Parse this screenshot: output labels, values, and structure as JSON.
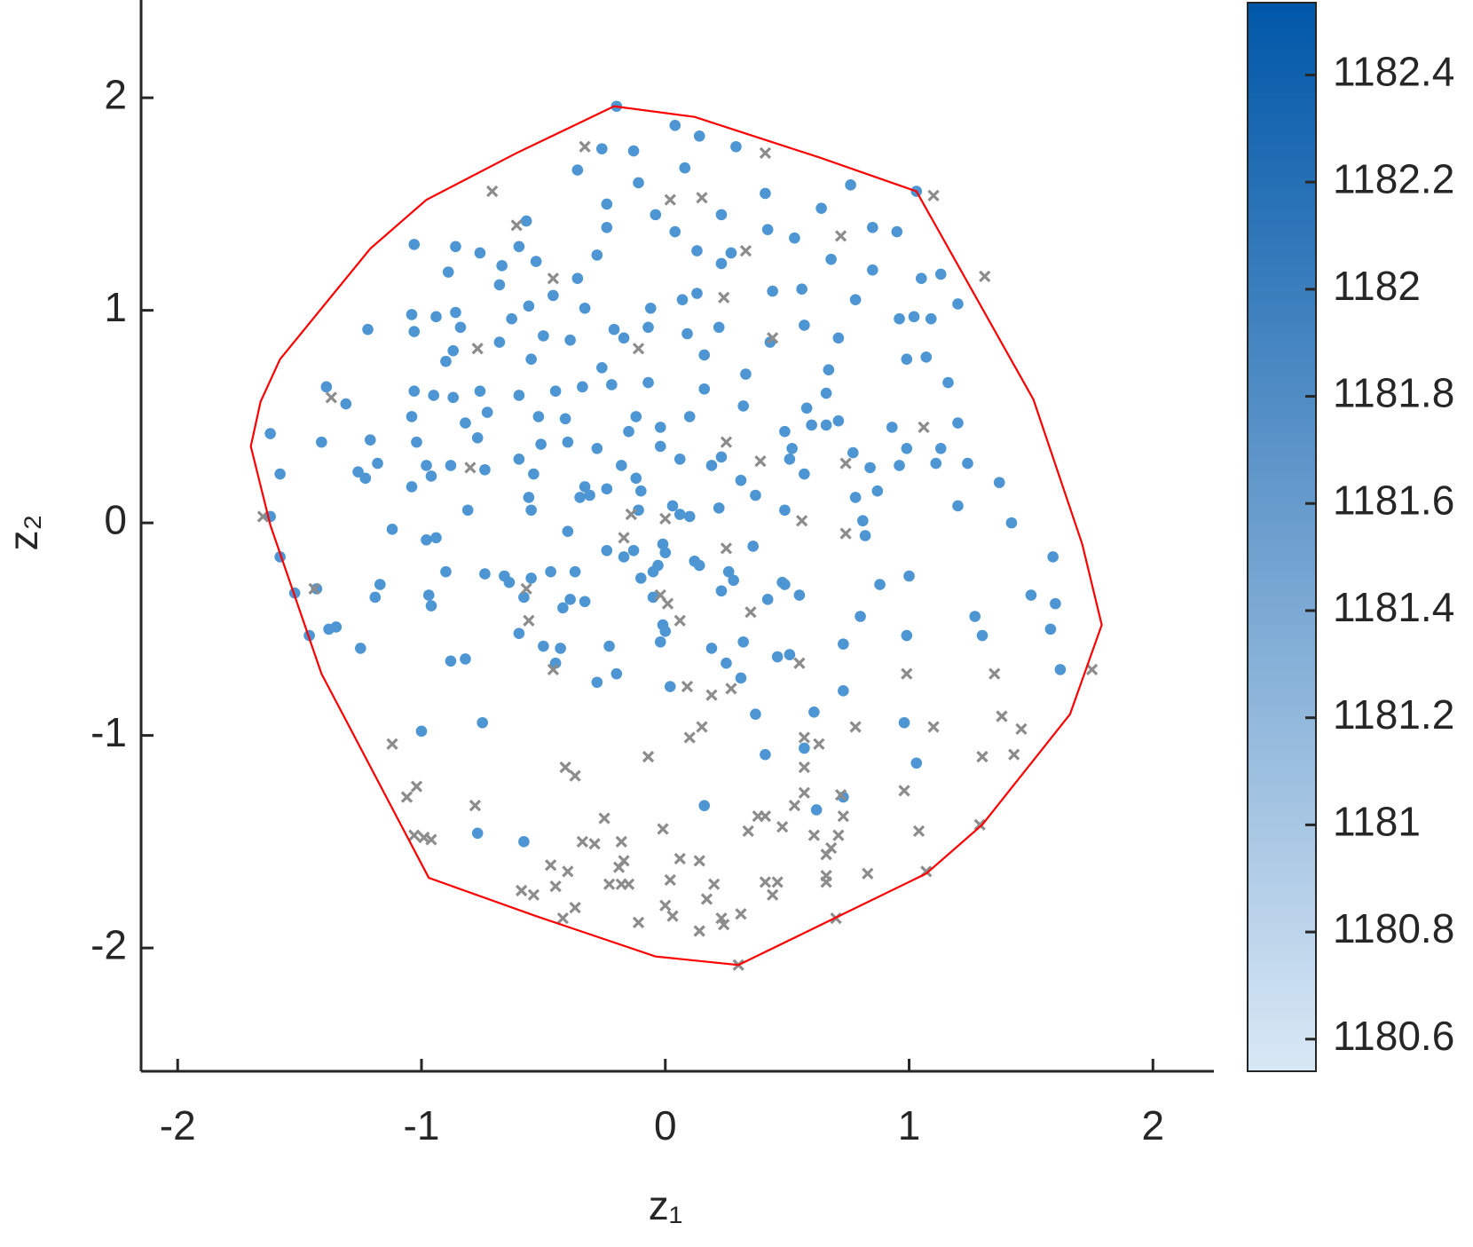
{
  "chart_data": {
    "type": "scatter",
    "xlabel": "z₁",
    "ylabel": "z₂",
    "xlim": [
      -2.15,
      2.25
    ],
    "ylim": [
      -2.58,
      2.46
    ],
    "xticks": [
      -2,
      -1,
      0,
      1,
      2
    ],
    "yticks": [
      -2,
      -1,
      0,
      1,
      2
    ],
    "grid": false,
    "series": [
      {
        "color": "#4d96d3",
        "marker": "o",
        "x": [
          -0.2,
          0.04,
          0.14,
          0.29,
          -0.36,
          -0.26,
          -0.13,
          -0.11,
          0.08,
          0.76,
          1.03,
          0.41,
          -0.24,
          -0.04,
          0.23,
          0.64,
          -0.57,
          -0.24,
          0.04,
          0.42,
          0.85,
          0.95,
          -1.03,
          -0.86,
          -0.76,
          -0.6,
          -0.28,
          0.13,
          0.27,
          0.53,
          0.68,
          -0.89,
          -0.67,
          -0.53,
          -0.36,
          0.23,
          0.85,
          1.05,
          1.13,
          -0.68,
          -0.46,
          0.13,
          0.44,
          0.56,
          -1.04,
          -0.86,
          -0.56,
          -0.33,
          -0.06,
          0.07,
          0.78,
          1.2,
          -1.22,
          -0.94,
          -0.84,
          -0.63,
          -0.5,
          -0.21,
          -0.07,
          0.09,
          0.22,
          0.57,
          0.96,
          1.02,
          1.09,
          -1.03,
          -0.87,
          -0.68,
          -0.39,
          -0.17,
          0.43,
          0.71,
          -0.9,
          -0.55,
          -0.26,
          0.99,
          1.07,
          0.16,
          0.67,
          -1.39,
          -1.03,
          -0.76,
          -0.45,
          -0.34,
          -0.22,
          -0.07,
          0.16,
          0.33,
          1.16,
          -0.95,
          -0.6,
          0.66,
          -1.31,
          -0.87,
          -1.04,
          -0.73,
          -0.52,
          -0.41,
          -0.12,
          0.1,
          0.32,
          0.58,
          1.2,
          -0.82,
          -0.51,
          -0.4,
          -0.28,
          -0.15,
          -0.02,
          0.49,
          0.6,
          0.66,
          0.71,
          0.93,
          -1.62,
          -1.21,
          -1.02,
          -0.77,
          -1.41,
          -0.02,
          0.52,
          0.99,
          1.13,
          -1.18,
          -0.98,
          -0.88,
          -0.74,
          -0.6,
          -0.18,
          0.06,
          0.23,
          0.51,
          0.77,
          1.11,
          1.24,
          -1.58,
          -1.26,
          -1.23,
          -0.96,
          -0.54,
          -0.12,
          0.19,
          0.31,
          0.57,
          0.84,
          0.96,
          1.37,
          -1.04,
          -0.33,
          -0.24,
          -0.1,
          0.37,
          0.78,
          0.87,
          -0.56,
          -0.35,
          -0.31,
          -0.81,
          -0.55,
          -0.11,
          0.03,
          0.22,
          0.49,
          1.2,
          -1.62,
          0.06,
          0.1,
          1.42,
          0.81,
          -1.12,
          -0.4,
          -0.94,
          -0.98,
          -0.01,
          0.36,
          0,
          -0.13,
          0.82,
          -0.24,
          -1.58,
          -0.17,
          0.12,
          0.14,
          1.59,
          -0.03,
          -0.05,
          -0.9,
          -0.74,
          -0.47,
          -0.37,
          0.26,
          1.0,
          -1.17,
          -0.66,
          -0.64,
          -0.55,
          -0.1,
          0.48,
          0.49,
          0.88,
          0.28,
          -1.43,
          0.23,
          -1.52,
          -0.97,
          -1.19,
          0.55,
          1.5,
          -0.58,
          -0.05,
          -0.39,
          0.42,
          1.6,
          -0.33,
          -0.96,
          -0.42,
          1.27,
          0.8,
          -0.01,
          -1.35,
          -1.38,
          1.58,
          -0.6,
          0,
          -1.46,
          1.3,
          0.99,
          -0.02,
          0.32,
          0.73,
          -0.5,
          -0.23,
          -0.43,
          -1.25,
          0.19,
          0.51,
          0.46,
          -0.88,
          -0.82,
          -0.45,
          0.25,
          1.62,
          -0.2,
          -0.28,
          0.02,
          0.31,
          0.73,
          0.61,
          0.37,
          0.98,
          -0.75,
          -1.0,
          0.57,
          0.41,
          1.03,
          0.73,
          0.16,
          0.62,
          -0.77,
          -0.58
        ],
        "values": [
          1.96,
          1.87,
          1.82,
          1.77,
          1.66,
          1.76,
          1.75,
          1.6,
          1.67,
          1.59,
          1.56,
          1.55,
          1.5,
          1.45,
          1.45,
          1.48,
          1.42,
          1.39,
          1.37,
          1.38,
          1.39,
          1.37,
          1.31,
          1.3,
          1.27,
          1.3,
          1.26,
          1.28,
          1.27,
          1.34,
          1.24,
          1.18,
          1.21,
          1.23,
          1.15,
          1.22,
          1.19,
          1.15,
          1.17,
          1.12,
          1.07,
          1.08,
          1.09,
          1.1,
          0.98,
          0.99,
          1.02,
          1.01,
          1.01,
          1.05,
          1.05,
          1.03,
          0.91,
          0.97,
          0.92,
          0.96,
          0.88,
          0.91,
          0.92,
          0.89,
          0.92,
          0.93,
          0.96,
          0.97,
          0.96,
          0.9,
          0.81,
          0.85,
          0.86,
          0.87,
          0.85,
          0.87,
          0.76,
          0.77,
          0.73,
          0.77,
          0.78,
          0.79,
          0.72,
          0.64,
          0.62,
          0.62,
          0.62,
          0.64,
          0.65,
          0.66,
          0.63,
          0.7,
          0.66,
          0.6,
          0.6,
          0.61,
          0.56,
          0.59,
          0.5,
          0.52,
          0.5,
          0.49,
          0.5,
          0.5,
          0.55,
          0.54,
          0.47,
          0.47,
          0.37,
          0.38,
          0.35,
          0.43,
          0.45,
          0.43,
          0.46,
          0.46,
          0.48,
          0.45,
          0.42,
          0.39,
          0.38,
          0.4,
          0.38,
          0.36,
          0.35,
          0.35,
          0.35,
          0.28,
          0.27,
          0.27,
          0.25,
          0.3,
          0.27,
          0.3,
          0.31,
          0.3,
          0.33,
          0.28,
          0.28,
          0.23,
          0.24,
          0.21,
          0.22,
          0.23,
          0.21,
          0.27,
          0.2,
          0.23,
          0.26,
          0.27,
          0.19,
          0.17,
          0.17,
          0.16,
          0.15,
          0.13,
          0.12,
          0.15,
          0.12,
          0.12,
          0.13,
          0.06,
          0.06,
          0.06,
          0.08,
          0.07,
          0.06,
          0.08,
          0.03,
          0.04,
          0.03,
          0,
          0.01,
          -0.03,
          -0.04,
          -0.07,
          -0.08,
          -0.1,
          -0.11,
          -0.14,
          -0.13,
          -0.06,
          -0.13,
          -0.16,
          -0.16,
          -0.18,
          -0.2,
          -0.16,
          -0.2,
          -0.23,
          -0.23,
          -0.24,
          -0.23,
          -0.23,
          -0.23,
          -0.25,
          -0.29,
          -0.25,
          -0.28,
          -0.26,
          -0.26,
          -0.28,
          -0.29,
          -0.29,
          -0.27,
          -0.31,
          -0.32,
          -0.33,
          -0.34,
          -0.35,
          -0.34,
          -0.34,
          -0.35,
          -0.35,
          -0.36,
          -0.36,
          -0.38,
          -0.37,
          -0.39,
          -0.4,
          -0.44,
          -0.44,
          -0.48,
          -0.49,
          -0.5,
          -0.5,
          -0.52,
          -0.51,
          -0.53,
          -0.53,
          -0.53,
          -0.56,
          -0.56,
          -0.57,
          -0.58,
          -0.58,
          -0.59,
          -0.59,
          -0.59,
          -0.62,
          -0.63,
          -0.65,
          -0.64,
          -0.66,
          -0.66,
          -0.69,
          -0.71,
          -0.75,
          -0.77,
          -0.73,
          -0.79,
          -0.89,
          -0.9,
          -0.94,
          -0.94,
          -0.98,
          -1.06,
          -1.09,
          -1.13,
          -1.29,
          -1.33,
          -1.35,
          -1.46,
          -1.5
        ]
      },
      {
        "color": "#8c8c8c",
        "marker": "x",
        "x": [
          -0.33,
          0.41,
          -0.71,
          0.02,
          0.15,
          1.1,
          -0.61,
          0.72,
          0.33,
          1.31,
          -0.46,
          0.24,
          0.44,
          -0.77,
          -0.11,
          -1.37,
          1.06,
          0.25,
          0.39,
          0.74,
          -0.8,
          -1.65,
          0,
          -0.14,
          0.56,
          0.74,
          -0.17,
          0.25,
          -0.57,
          -1.44,
          -0.02,
          0.01,
          0.35,
          -0.56,
          0.06,
          0.55,
          -0.46,
          0.99,
          1.35,
          1.75,
          0.09,
          0.27,
          0.19,
          0.15,
          0.78,
          1.1,
          1.38,
          1.46,
          0.1,
          0.57,
          0.63,
          -1.12,
          -0.07,
          1.3,
          1.43,
          -0.41,
          -0.37,
          0.57,
          -1.02,
          -1.06,
          0.98,
          0.72,
          -0.78,
          0.57,
          0.53,
          0.38,
          0.41,
          0.34,
          0.73,
          0.48,
          -0.25,
          1.29,
          -0.01,
          1.04,
          -1.03,
          -0.99,
          -0.96,
          0.61,
          0.71,
          -0.34,
          -0.29,
          -0.18,
          0.68,
          0.66,
          -0.17,
          0.06,
          0.14,
          -0.47,
          -0.4,
          -0.19,
          0.66,
          0.83,
          1.07,
          0.02,
          0.66,
          -0.23,
          -0.18,
          -0.15,
          -0.45,
          0.2,
          0.41,
          0.46,
          -0.59,
          -0.54,
          0.17,
          0.44,
          0,
          -0.37,
          0.03,
          0.31,
          0.7,
          -0.42,
          0.23,
          0.24,
          -0.11,
          0.14,
          0.3
        ],
        "values": [
          1.77,
          1.74,
          1.56,
          1.52,
          1.53,
          1.54,
          1.4,
          1.35,
          1.28,
          1.16,
          1.15,
          1.06,
          0.87,
          0.82,
          0.82,
          0.59,
          0.45,
          0.38,
          0.29,
          0.28,
          0.26,
          0.03,
          0.02,
          0.04,
          0.01,
          -0.05,
          -0.07,
          -0.12,
          -0.31,
          -0.31,
          -0.34,
          -0.38,
          -0.42,
          -0.46,
          -0.46,
          -0.66,
          -0.69,
          -0.71,
          -0.71,
          -0.69,
          -0.77,
          -0.78,
          -0.81,
          -0.96,
          -0.96,
          -0.96,
          -0.91,
          -0.97,
          -1.01,
          -1.01,
          -1.04,
          -1.04,
          -1.1,
          -1.1,
          -1.09,
          -1.15,
          -1.19,
          -1.15,
          -1.24,
          -1.29,
          -1.26,
          -1.28,
          -1.33,
          -1.27,
          -1.33,
          -1.38,
          -1.38,
          -1.45,
          -1.38,
          -1.43,
          -1.39,
          -1.42,
          -1.44,
          -1.45,
          -1.47,
          -1.48,
          -1.49,
          -1.47,
          -1.47,
          -1.5,
          -1.51,
          -1.5,
          -1.53,
          -1.56,
          -1.59,
          -1.58,
          -1.59,
          -1.61,
          -1.64,
          -1.62,
          -1.66,
          -1.65,
          -1.64,
          -1.68,
          -1.69,
          -1.7,
          -1.7,
          -1.7,
          -1.71,
          -1.7,
          -1.69,
          -1.69,
          -1.73,
          -1.75,
          -1.77,
          -1.75,
          -1.8,
          -1.81,
          -1.85,
          -1.84,
          -1.86,
          -1.86,
          -1.86,
          -1.89,
          -1.88,
          -1.92,
          -2.08
        ]
      },
      {
        "color": "#ff0000",
        "marker": "none",
        "line": "closed",
        "x": [
          -0.21,
          0.12,
          0.63,
          1.03,
          1.51,
          1.71,
          1.79,
          1.66,
          1.3,
          1.07,
          0.3,
          -0.04,
          -0.53,
          -0.97,
          -1.41,
          -1.62,
          -1.7,
          -1.66,
          -1.58,
          -1.21,
          -0.98,
          -0.61
        ],
        "values": [
          1.96,
          1.91,
          1.72,
          1.56,
          0.58,
          -0.1,
          -0.48,
          -0.9,
          -1.42,
          -1.65,
          -2.08,
          -2.04,
          -1.85,
          -1.67,
          -0.71,
          -0.01,
          0.36,
          0.57,
          0.77,
          1.29,
          1.52,
          1.74
        ]
      }
    ],
    "colorbar": {
      "clim": [
        1180.54,
        1182.535
      ],
      "ticks": [
        1180.6,
        1180.8,
        1181,
        1181.2,
        1181.4,
        1181.6,
        1181.8,
        1182,
        1182.2,
        1182.4
      ],
      "colormap": [
        "#d9e8f5",
        "#0057a8"
      ]
    }
  }
}
